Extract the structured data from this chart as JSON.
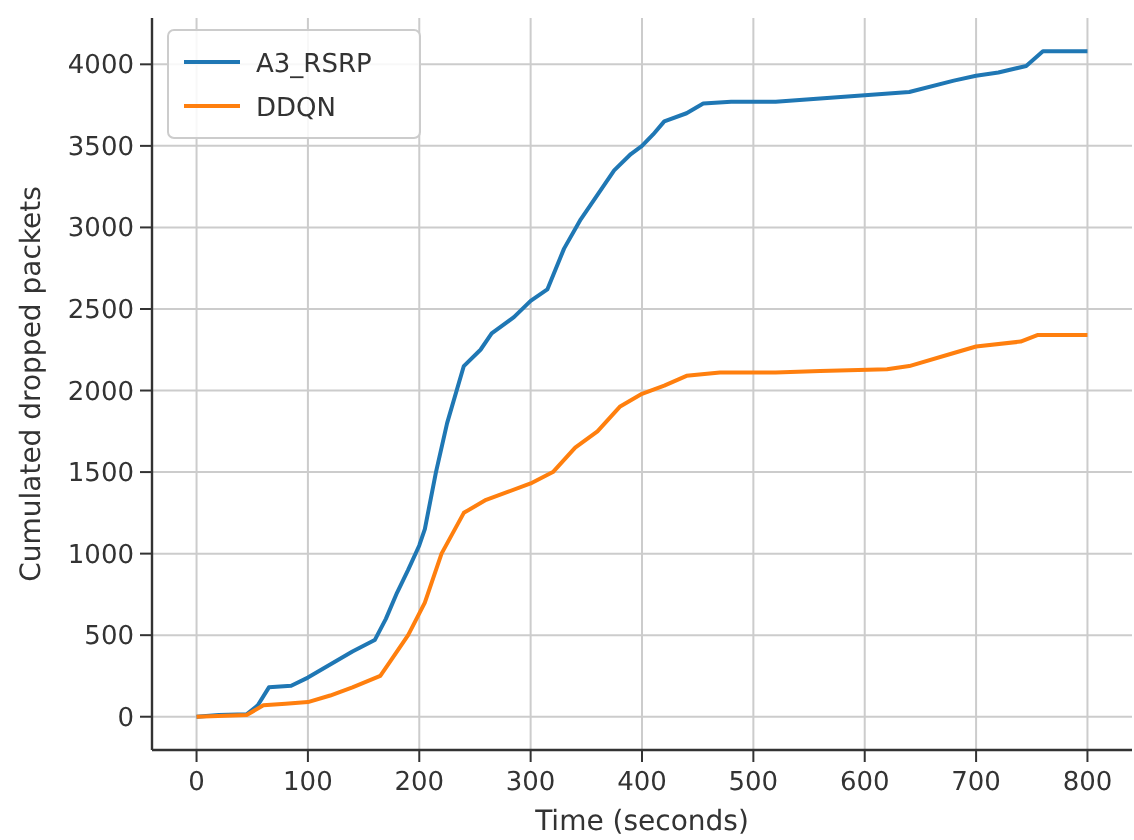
{
  "chart_data": {
    "type": "line",
    "xlabel": "Time (seconds)",
    "ylabel": "Cumulated dropped packets",
    "xlim": [
      -40,
      840
    ],
    "ylim": [
      -204,
      4284
    ],
    "xticks": [
      0,
      100,
      200,
      300,
      400,
      500,
      600,
      700,
      800
    ],
    "yticks": [
      0,
      500,
      1000,
      1500,
      2000,
      2500,
      3000,
      3500,
      4000
    ],
    "grid": true,
    "legend": "top left",
    "marker": "none",
    "line_style": "solid",
    "series": [
      {
        "name": "A3_RSRP",
        "color": "#1f77b4",
        "x": [
          0,
          20,
          45,
          55,
          65,
          85,
          100,
          120,
          140,
          160,
          170,
          180,
          190,
          200,
          205,
          215,
          225,
          240,
          255,
          265,
          285,
          300,
          315,
          330,
          345,
          360,
          375,
          390,
          400,
          410,
          420,
          440,
          455,
          480,
          520,
          560,
          600,
          640,
          680,
          700,
          720,
          745,
          760,
          800
        ],
        "values": [
          0,
          10,
          15,
          70,
          180,
          190,
          240,
          320,
          400,
          470,
          600,
          760,
          900,
          1050,
          1150,
          1500,
          1800,
          2150,
          2250,
          2350,
          2450,
          2550,
          2620,
          2870,
          3050,
          3200,
          3350,
          3450,
          3500,
          3570,
          3650,
          3700,
          3760,
          3770,
          3770,
          3790,
          3810,
          3830,
          3900,
          3930,
          3950,
          3990,
          4080,
          4080
        ]
      },
      {
        "name": "DDQN",
        "color": "#ff7f0e",
        "x": [
          0,
          45,
          60,
          80,
          100,
          120,
          140,
          165,
          175,
          190,
          205,
          220,
          240,
          260,
          280,
          300,
          320,
          340,
          360,
          380,
          400,
          420,
          440,
          470,
          520,
          560,
          620,
          640,
          680,
          700,
          740,
          755,
          800
        ],
        "values": [
          0,
          10,
          70,
          80,
          90,
          130,
          180,
          250,
          350,
          500,
          700,
          1000,
          1250,
          1330,
          1380,
          1430,
          1500,
          1650,
          1750,
          1900,
          1980,
          2030,
          2090,
          2110,
          2110,
          2120,
          2130,
          2150,
          2230,
          2270,
          2300,
          2340,
          2340
        ]
      }
    ]
  }
}
